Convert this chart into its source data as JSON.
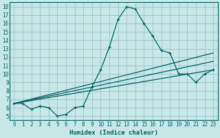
{
  "xlabel": "Humidex (Indice chaleur)",
  "background_color": "#c8e8e8",
  "grid_color": "#a0c8c8",
  "line_color": "#006060",
  "xlim": [
    -0.5,
    23.5
  ],
  "ylim": [
    4.5,
    18.5
  ],
  "xticks": [
    0,
    1,
    2,
    3,
    4,
    5,
    6,
    7,
    8,
    9,
    10,
    11,
    12,
    13,
    14,
    15,
    16,
    17,
    18,
    19,
    20,
    21,
    22,
    23
  ],
  "yticks": [
    5,
    6,
    7,
    8,
    9,
    10,
    11,
    12,
    13,
    14,
    15,
    16,
    17,
    18
  ],
  "curve_x": [
    0,
    1,
    2,
    3,
    4,
    5,
    6,
    7,
    8,
    9,
    10,
    11,
    12,
    13,
    14,
    15,
    16,
    17,
    18,
    19,
    20,
    21,
    22,
    23
  ],
  "curve_y": [
    6.5,
    6.5,
    5.8,
    6.2,
    6.0,
    5.0,
    5.2,
    6.0,
    6.2,
    8.5,
    10.5,
    13.2,
    16.5,
    18.0,
    17.7,
    16.0,
    14.5,
    12.8,
    12.5,
    10.0,
    10.0,
    9.0,
    10.0,
    10.5
  ],
  "line2_x": [
    0,
    23
  ],
  "line2_y": [
    6.5,
    10.5
  ],
  "line3_x": [
    0,
    23
  ],
  "line3_y": [
    6.5,
    11.5
  ],
  "line4_x": [
    0,
    23
  ],
  "line4_y": [
    6.5,
    12.5
  ],
  "xlabel_fontsize": 6.5,
  "tick_fontsize": 5.5
}
